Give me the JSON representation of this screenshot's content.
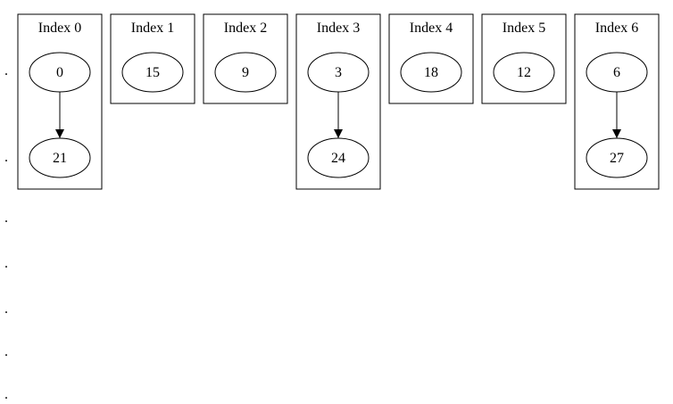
{
  "diagram": {
    "type": "hash-table-chaining",
    "buckets": [
      {
        "label": "Index 0",
        "keys": [
          "0",
          "21"
        ]
      },
      {
        "label": "Index 1",
        "keys": [
          "15"
        ]
      },
      {
        "label": "Index 2",
        "keys": [
          "9"
        ]
      },
      {
        "label": "Index 3",
        "keys": [
          "3",
          "24"
        ]
      },
      {
        "label": "Index 4",
        "keys": [
          "18"
        ]
      },
      {
        "label": "Index 5",
        "keys": [
          "12"
        ]
      },
      {
        "label": "Index 6",
        "keys": [
          "6",
          "27"
        ]
      }
    ],
    "left_markers": [
      ".",
      ".",
      ".",
      ".",
      ".",
      ".",
      "."
    ]
  },
  "colors": {
    "stroke": "#000000",
    "background": "#ffffff"
  }
}
